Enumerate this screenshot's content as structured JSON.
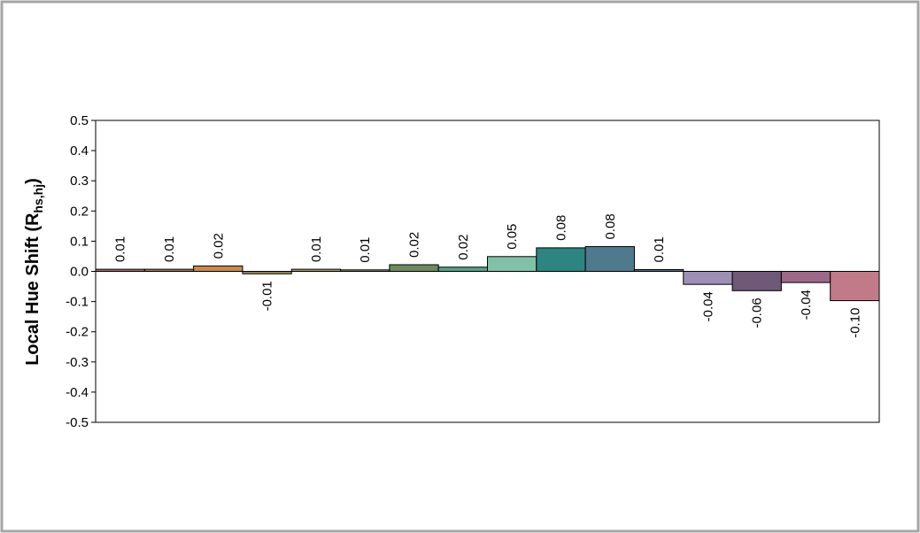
{
  "chart_data": {
    "type": "bar",
    "ylabel": "Local Hue Shift (R",
    "ylabel_sub": "hs,hj",
    "ylabel_close": ")",
    "ylim": [
      -0.5,
      0.5
    ],
    "yticks": [
      "0.5",
      "0.4",
      "0.3",
      "0.2",
      "0.1",
      "0.0",
      "-0.1",
      "-0.2",
      "-0.3",
      "-0.4",
      "-0.5"
    ],
    "ytick_values": [
      0.5,
      0.4,
      0.3,
      0.2,
      0.1,
      0.0,
      -0.1,
      -0.2,
      -0.3,
      -0.4,
      -0.5
    ],
    "grid": false,
    "legend": "none",
    "values": [
      0.007,
      0.007,
      0.018,
      -0.008,
      0.007,
      0.005,
      0.022,
      0.014,
      0.049,
      0.078,
      0.082,
      0.006,
      -0.043,
      -0.064,
      -0.037,
      -0.097
    ],
    "labels": [
      "0.01",
      "0.01",
      "0.02",
      "-0.01",
      "0.01",
      "0.01",
      "0.02",
      "0.02",
      "0.05",
      "0.08",
      "0.08",
      "0.01",
      "-0.04",
      "-0.06",
      "-0.04",
      "-0.10"
    ],
    "colors": [
      "#b06a75",
      "#b07a52",
      "#c98a50",
      "#9a8a5e",
      "#a99a6c",
      "#8e9a62",
      "#6d8a5e",
      "#5aa087",
      "#82c0a8",
      "#2d8480",
      "#4f7a8d",
      "#4e6d8a",
      "#9d90b4",
      "#705878",
      "#9c6a88",
      "#c07a88"
    ]
  }
}
